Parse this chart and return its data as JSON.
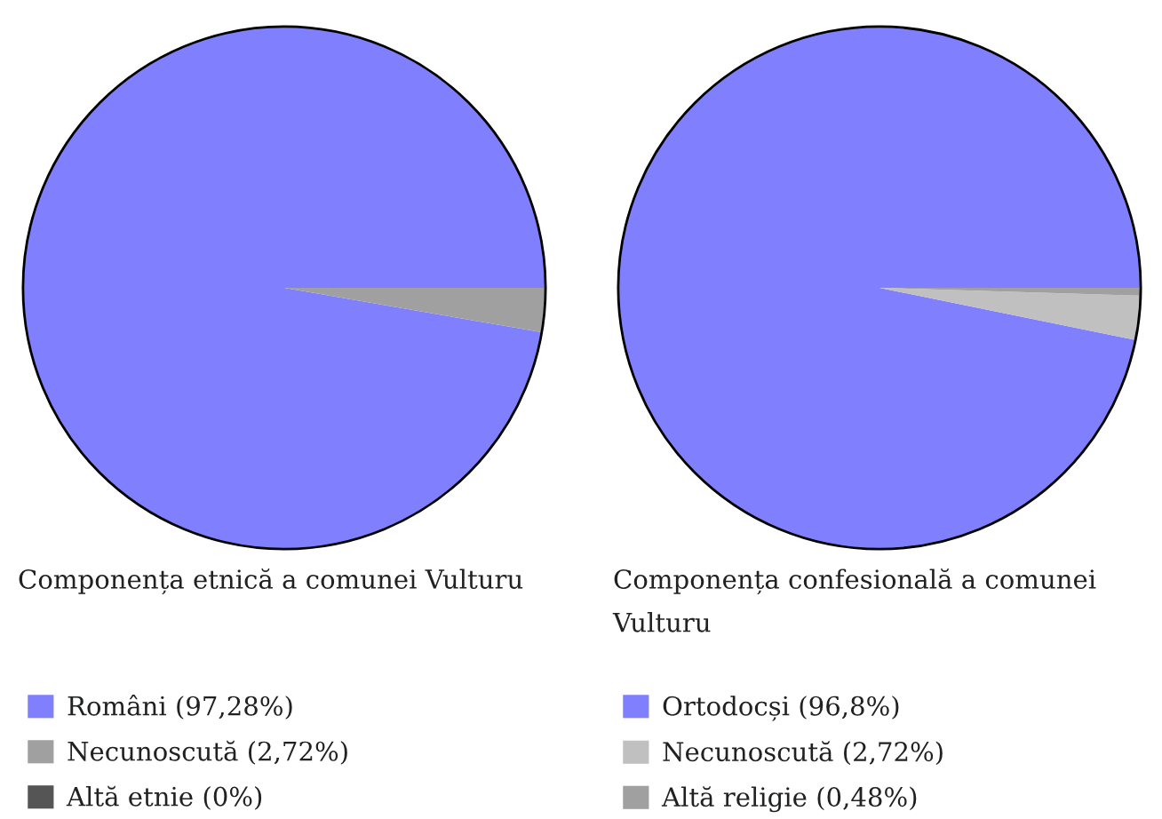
{
  "chart_data": [
    {
      "type": "pie",
      "title": "Componența etnică a comunei Vulturu",
      "categories": [
        "Români (97,28%)",
        "Necunoscută (2,72%)",
        "Altă etnie (0%)"
      ],
      "values": [
        97.28,
        2.72,
        0
      ],
      "colors": [
        "#8080ff",
        "#a0a0a0",
        "#555555"
      ],
      "legend": "bottom"
    },
    {
      "type": "pie",
      "title": "Componența confesională a comunei Vulturu",
      "categories": [
        "Ortodocși (96,8%)",
        "Necunoscută (2,72%)",
        "Altă religie (0,48%)"
      ],
      "values": [
        96.8,
        2.72,
        0.48
      ],
      "colors": [
        "#8080ff",
        "#c0c0c0",
        "#a0a0a0"
      ],
      "legend": "bottom"
    }
  ]
}
